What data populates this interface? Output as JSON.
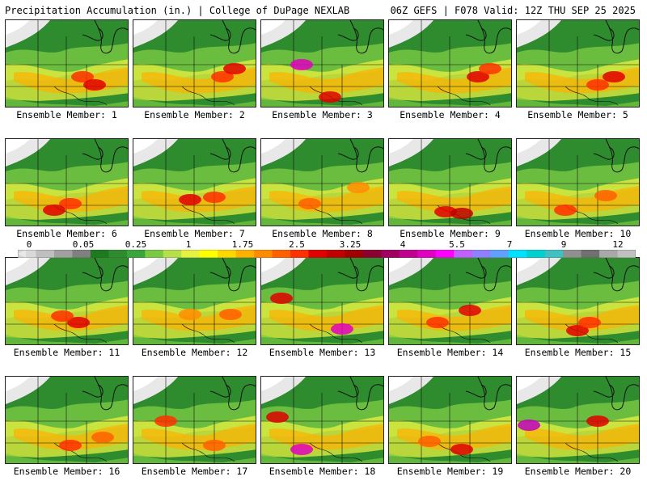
{
  "header": {
    "title": "Precipitation Accumulation (in.) | College of DuPage NEXLAB",
    "run_info": "06Z GEFS | F078 Valid: 12Z THU SEP 25 2025"
  },
  "members": [
    {
      "label": "Ensemble Member: 1"
    },
    {
      "label": "Ensemble Member: 2"
    },
    {
      "label": "Ensemble Member: 3"
    },
    {
      "label": "Ensemble Member: 4"
    },
    {
      "label": "Ensemble Member: 5"
    },
    {
      "label": "Ensemble Member: 6"
    },
    {
      "label": "Ensemble Member: 7"
    },
    {
      "label": "Ensemble Member: 8"
    },
    {
      "label": "Ensemble Member: 9"
    },
    {
      "label": "Ensemble Member: 10"
    },
    {
      "label": "Ensemble Member: 11"
    },
    {
      "label": "Ensemble Member: 12"
    },
    {
      "label": "Ensemble Member: 13"
    },
    {
      "label": "Ensemble Member: 14"
    },
    {
      "label": "Ensemble Member: 15"
    },
    {
      "label": "Ensemble Member: 16"
    },
    {
      "label": "Ensemble Member: 17"
    },
    {
      "label": "Ensemble Member: 18"
    },
    {
      "label": "Ensemble Member: 19"
    },
    {
      "label": "Ensemble Member: 20"
    }
  ],
  "colorbar": {
    "ticks": [
      "0",
      "0.05",
      "0.25",
      "1",
      "1.75",
      "2.5",
      "3.25",
      "4",
      "5.5",
      "7",
      "9",
      "12"
    ],
    "colors": [
      "#d9d9d9",
      "#bfbfbf",
      "#a0a0a0",
      "#808080",
      "#1e7a1e",
      "#2e8b2e",
      "#3aa53a",
      "#7ac943",
      "#b5e04a",
      "#e8f040",
      "#ffff00",
      "#ffd700",
      "#ffb000",
      "#ff8c00",
      "#ff6000",
      "#ff3000",
      "#e00000",
      "#c00000",
      "#a00000",
      "#8b0030",
      "#a00060",
      "#c00090",
      "#e000c0",
      "#ff00ff",
      "#c060ff",
      "#9080ff",
      "#60a0ff",
      "#00e0ff",
      "#00d0d0",
      "#40c0c0",
      "#909090",
      "#707070",
      "#a8a8a8",
      "#c0c0c0"
    ]
  }
}
